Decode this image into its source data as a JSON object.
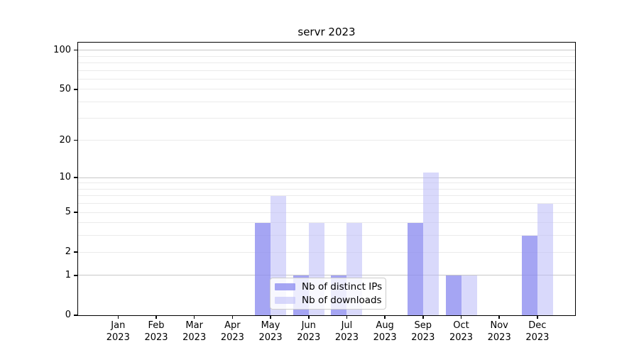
{
  "title": "servr 2023",
  "chart_data": {
    "type": "bar",
    "title": "servr 2023",
    "categories": [
      "Jan 2023",
      "Feb 2023",
      "Mar 2023",
      "Apr 2023",
      "May 2023",
      "Jun 2023",
      "Jul 2023",
      "Aug 2023",
      "Sep 2023",
      "Oct 2023",
      "Nov 2023",
      "Dec 2023"
    ],
    "series": [
      {
        "name": "Nb of distinct IPs",
        "color": "rgba(140,140,240,0.78)",
        "values": [
          0,
          0,
          0,
          0,
          4,
          1,
          1,
          0,
          4,
          1,
          0,
          3
        ]
      },
      {
        "name": "Nb of downloads",
        "color": "rgba(185,185,247,0.55)",
        "values": [
          0,
          0,
          0,
          0,
          7,
          4,
          4,
          0,
          11,
          1,
          0,
          6
        ]
      }
    ],
    "xlabel": "",
    "ylabel": "",
    "yscale": "log1p",
    "ylim": [
      0,
      113
    ],
    "yticks": [
      0,
      1,
      2,
      5,
      10,
      20,
      50,
      100
    ],
    "major_gridlines": [
      1,
      10,
      100
    ],
    "minor_gridlines": [
      2,
      3,
      4,
      5,
      6,
      7,
      8,
      9,
      20,
      30,
      40,
      50,
      60,
      70,
      80,
      90
    ],
    "grid": true,
    "legend_position": "lower center"
  },
  "colors": {
    "major_grid": "#c7c7c7",
    "minor_grid": "#ebebeb",
    "spine": "#000000",
    "background": "#ffffff"
  }
}
